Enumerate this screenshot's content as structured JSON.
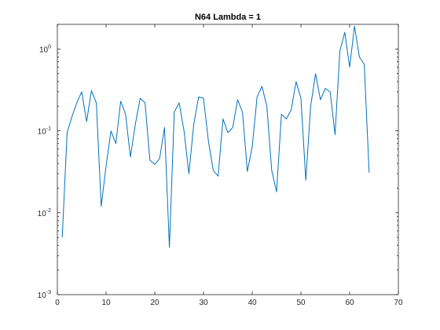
{
  "chart_data": {
    "type": "line",
    "title": "N64 Lambda = 1",
    "xlabel": "",
    "ylabel": "",
    "xlim": [
      0,
      70
    ],
    "ylim": [
      0.001,
      2
    ],
    "yscale": "log",
    "grid": false,
    "line_color": "#0072BD",
    "x_ticks": [
      0,
      10,
      20,
      30,
      40,
      50,
      60,
      70
    ],
    "x_tick_labels": [
      "0",
      "10",
      "20",
      "30",
      "40",
      "50",
      "60",
      "70"
    ],
    "y_ticks": [
      0.001,
      0.01,
      0.1,
      1
    ],
    "y_tick_labels": [
      {
        "base": "10",
        "exp": "-3"
      },
      {
        "base": "10",
        "exp": "-2"
      },
      {
        "base": "10",
        "exp": "-1"
      },
      {
        "base": "10",
        "exp": "0"
      }
    ],
    "series": [
      {
        "x": [
          1,
          2,
          3,
          4,
          5,
          6,
          7,
          8,
          9,
          10,
          11,
          12,
          13,
          14,
          15,
          16,
          17,
          18,
          19,
          20,
          21,
          22,
          23,
          24,
          25,
          26,
          27,
          28,
          29,
          30,
          31,
          32,
          33,
          34,
          35,
          36,
          37,
          38,
          39,
          40,
          41,
          42,
          43,
          44,
          45,
          46,
          47,
          48,
          49,
          50,
          51,
          52,
          53,
          54,
          55,
          56,
          57,
          58,
          59,
          60,
          61,
          62,
          63,
          64
        ],
        "y": [
          0.005,
          0.095,
          0.15,
          0.22,
          0.3,
          0.13,
          0.31,
          0.22,
          0.012,
          0.037,
          0.1,
          0.07,
          0.23,
          0.16,
          0.048,
          0.12,
          0.25,
          0.22,
          0.044,
          0.039,
          0.046,
          0.11,
          0.0038,
          0.17,
          0.22,
          0.1,
          0.03,
          0.12,
          0.26,
          0.25,
          0.076,
          0.033,
          0.028,
          0.14,
          0.095,
          0.11,
          0.24,
          0.17,
          0.032,
          0.064,
          0.26,
          0.35,
          0.2,
          0.033,
          0.018,
          0.16,
          0.14,
          0.18,
          0.4,
          0.25,
          0.025,
          0.2,
          0.5,
          0.24,
          0.33,
          0.3,
          0.09,
          0.95,
          1.6,
          0.6,
          1.9,
          0.8,
          0.65,
          0.031
        ]
      }
    ]
  }
}
